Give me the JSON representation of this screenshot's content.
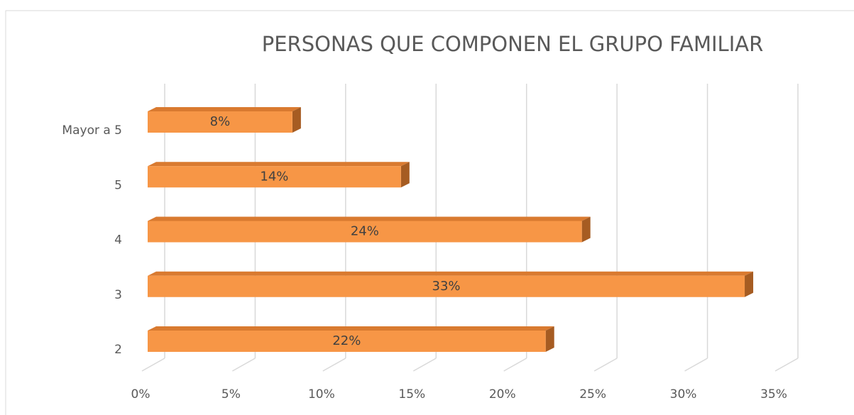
{
  "chart_data": {
    "type": "bar3d_horizontal",
    "title": "PERSONAS QUE COMPONEN EL GRUPO FAMILIAR",
    "categories": [
      "2",
      "3",
      "4",
      "5",
      "Mayor a 5"
    ],
    "values": [
      22,
      33,
      24,
      14,
      8
    ],
    "value_labels": [
      "22%",
      "33%",
      "24%",
      "14%",
      "8%"
    ],
    "color": "#f79646",
    "xlim": [
      0,
      35
    ],
    "xticks": [
      {
        "value": 0,
        "label": "0%"
      },
      {
        "value": 5,
        "label": "5%"
      },
      {
        "value": 10,
        "label": "10%"
      },
      {
        "value": 15,
        "label": "15%"
      },
      {
        "value": 20,
        "label": "20%"
      },
      {
        "value": 25,
        "label": "25%"
      },
      {
        "value": 30,
        "label": "30%"
      },
      {
        "value": 35,
        "label": "35%"
      }
    ],
    "grid": true
  }
}
